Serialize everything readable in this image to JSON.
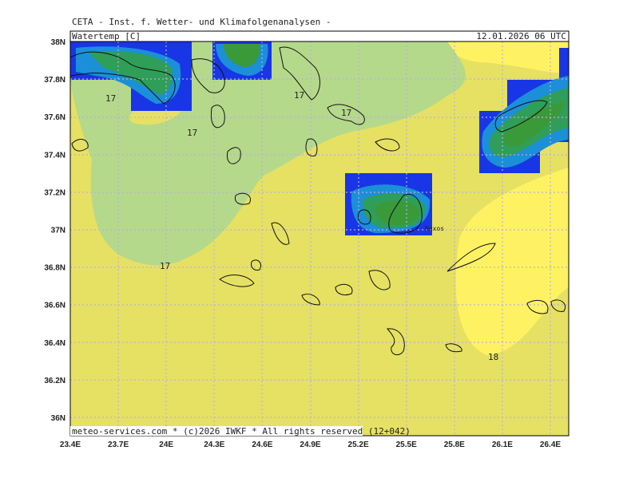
{
  "header": {
    "source": "CETA  -  Inst. f. Wetter- und Klimafolgenanalysen  -",
    "variable": "Watertemp [C]",
    "datetime": "12.01.2026  06  UTC"
  },
  "footer": "meteo-services.com * (c)2026 IWKF * All rights reserved (12+042)",
  "x_labels": [
    "23.4E",
    "23.7E",
    "24E",
    "24.3E",
    "24.6E",
    "24.9E",
    "25.2E",
    "25.5E",
    "25.8E",
    "26.1E",
    "26.4E"
  ],
  "y_labels": [
    "38N",
    "37.8N",
    "37.6N",
    "37.4N",
    "37.2N",
    "37N",
    "36.8N",
    "36.6N",
    "36.4N",
    "36.2N",
    "36N"
  ],
  "contour_labels": [
    "17",
    "17",
    "17",
    "17",
    "17",
    "18"
  ],
  "places": [
    "Naxos"
  ]
}
